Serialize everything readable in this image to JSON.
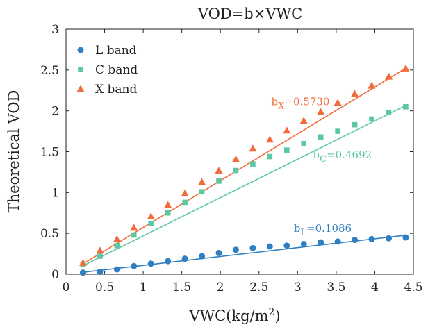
{
  "chart_data": {
    "type": "scatter",
    "title": "VOD=b×VWC",
    "xlabel_main": "VWC(kg/m",
    "xlabel_sup": "2",
    "xlabel_end": ")",
    "ylabel": "Theoretical VOD",
    "xlim": [
      0,
      4.5
    ],
    "ylim": [
      0,
      3
    ],
    "xticks": [
      0,
      0.5,
      1,
      1.5,
      2,
      2.5,
      3,
      3.5,
      4,
      4.5
    ],
    "xtick_labels": [
      "0",
      "0.5",
      "1",
      "1.5",
      "2",
      "2.5",
      "3",
      "3.5",
      "4",
      "4.5"
    ],
    "yticks": [
      0,
      0.5,
      1,
      1.5,
      2,
      2.5,
      3
    ],
    "ytick_labels": [
      "0",
      "0.5",
      "1",
      "1.5",
      "2",
      "2.5",
      "3"
    ],
    "grid": false,
    "legend_position": "top-left",
    "x": [
      0.22,
      0.44,
      0.66,
      0.88,
      1.1,
      1.32,
      1.54,
      1.76,
      1.98,
      2.2,
      2.42,
      2.64,
      2.86,
      3.08,
      3.3,
      3.52,
      3.74,
      3.96,
      4.18,
      4.4
    ],
    "series": [
      {
        "name": "L band",
        "marker": "circle",
        "color": "#2f7fc1",
        "values": [
          0.02,
          0.03,
          0.06,
          0.1,
          0.13,
          0.16,
          0.19,
          0.22,
          0.26,
          0.3,
          0.32,
          0.34,
          0.35,
          0.37,
          0.39,
          0.4,
          0.42,
          0.43,
          0.44,
          0.45
        ],
        "fit_slope": 0.1086,
        "annotation_prefix": "b",
        "annotation_sub": "L",
        "annotation_value": "=0.1086"
      },
      {
        "name": "C band",
        "marker": "square",
        "color": "#5cc7a3",
        "values": [
          0.12,
          0.22,
          0.35,
          0.48,
          0.62,
          0.75,
          0.88,
          1.01,
          1.14,
          1.27,
          1.35,
          1.44,
          1.52,
          1.6,
          1.68,
          1.75,
          1.83,
          1.9,
          1.98,
          2.05
        ],
        "fit_slope": 0.4692,
        "annotation_prefix": "b",
        "annotation_sub": "C",
        "annotation_value": "=0.4692"
      },
      {
        "name": "X band",
        "marker": "triangle",
        "color": "#f26b3a",
        "values": [
          0.14,
          0.29,
          0.43,
          0.57,
          0.71,
          0.85,
          0.99,
          1.13,
          1.27,
          1.41,
          1.54,
          1.65,
          1.76,
          1.88,
          1.99,
          2.1,
          2.21,
          2.31,
          2.42,
          2.52
        ],
        "fit_slope": 0.573,
        "annotation_prefix": "b",
        "annotation_sub": "X",
        "annotation_value": "=0.5730"
      }
    ]
  }
}
